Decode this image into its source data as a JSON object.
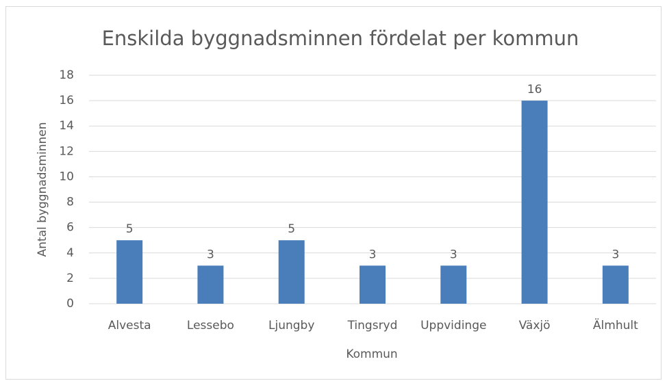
{
  "chart_data": {
    "type": "bar",
    "title": "Enskilda byggnadsminnen fördelat per kommun",
    "x_label": "Kommun",
    "y_label": "Antal byggnadsminnen",
    "categories": [
      "Alvesta",
      "Lessebo",
      "Ljungby",
      "Tingsryd",
      "Uppvidinge",
      "Växjö",
      "Älmhult"
    ],
    "values": [
      5,
      3,
      5,
      3,
      3,
      16,
      3
    ],
    "color": "#4a7ebb",
    "ylim": [
      0,
      18
    ],
    "yticks": [
      0,
      2,
      4,
      6,
      8,
      10,
      12,
      14,
      16,
      18
    ],
    "grid": true,
    "data_labels": true
  }
}
